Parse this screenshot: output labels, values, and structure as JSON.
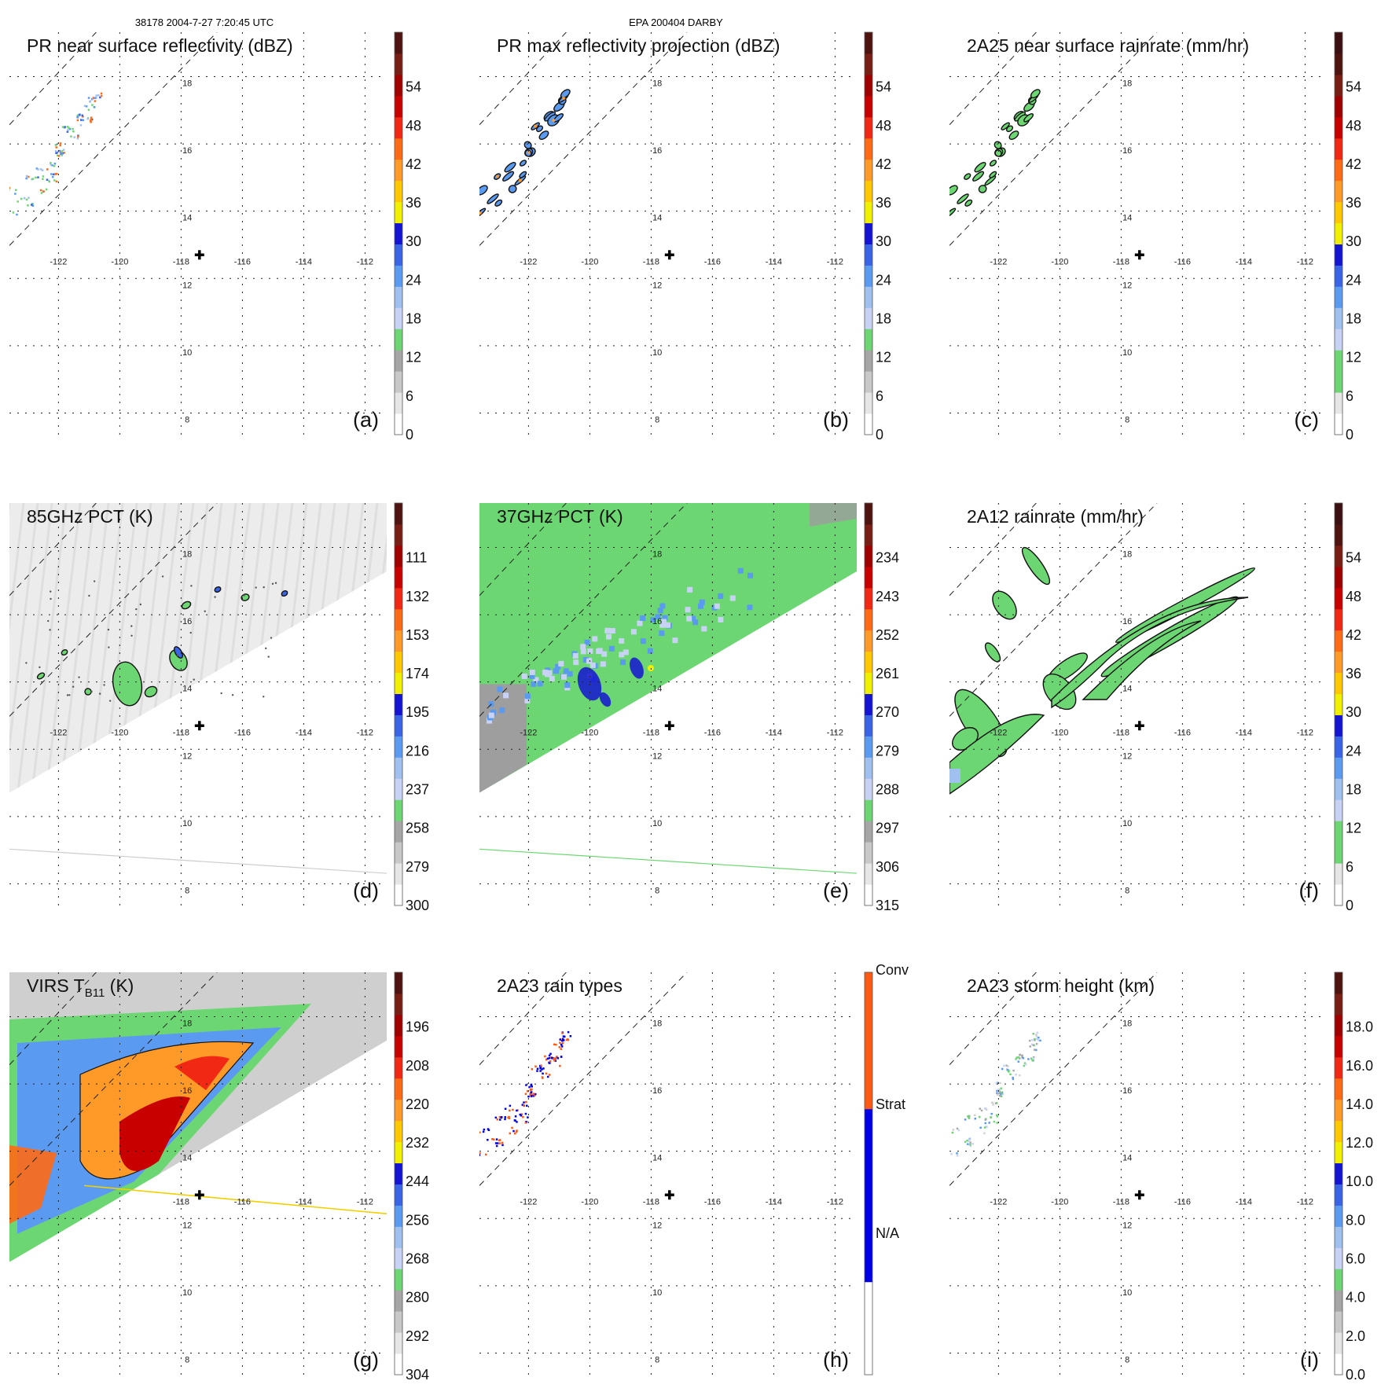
{
  "header": {
    "left": "38178 2004-7-27 7:20:45 UTC",
    "center": "EPA 200404 DARBY"
  },
  "colors": {
    "reflectivity_scale": [
      "#ffffff",
      "#e6e6e6",
      "#c8c8c8",
      "#a6a6a6",
      "#6cd672",
      "#c8d2f4",
      "#a0c0f0",
      "#5a9af0",
      "#3a64e6",
      "#1414d2",
      "#f0f000",
      "#ffc800",
      "#ff9a28",
      "#ff6a14",
      "#f02814",
      "#c80000",
      "#a00000",
      "#781e14",
      "#501410"
    ],
    "rain_type_scale": [
      "#ffffff",
      "#0000e6",
      "#ff5a14"
    ],
    "storm_center_marker": "#000000"
  },
  "chart_data": [
    {
      "id": "a",
      "type": "heatmap",
      "title": "PR near surface reflectivity (dBZ)",
      "label": "(a)",
      "colorbar_ticks": [
        "0",
        "6",
        "12",
        "18",
        "24",
        "30",
        "36",
        "42",
        "48",
        "54"
      ],
      "lon_ticks": [
        "-122",
        "-120",
        "-118",
        "-116",
        "-114",
        "-112"
      ],
      "lat_ticks": [
        "18",
        "16",
        "14",
        "12",
        "10",
        "8"
      ],
      "storm_center": [
        -117.4,
        13.1
      ]
    },
    {
      "id": "b",
      "type": "heatmap",
      "title": "PR max reflectivity projection (dBZ)",
      "label": "(b)",
      "colorbar_ticks": [
        "0",
        "6",
        "12",
        "18",
        "24",
        "30",
        "36",
        "42",
        "48",
        "54"
      ],
      "lon_ticks": [
        "-122",
        "-120",
        "-118",
        "-116",
        "-114",
        "-112"
      ],
      "lat_ticks": [
        "18",
        "16",
        "14",
        "12",
        "10",
        "8"
      ],
      "storm_center": [
        -117.4,
        13.1
      ]
    },
    {
      "id": "c",
      "type": "heatmap",
      "title": "2A25 near surface rainrate (mm/hr)",
      "label": "(c)",
      "colorbar_ticks": [
        "0",
        "6",
        "12",
        "18",
        "24",
        "30",
        "36",
        "42",
        "48",
        "54"
      ],
      "lon_ticks": [
        "-122",
        "-120",
        "-118",
        "-116",
        "-114",
        "-112"
      ],
      "lat_ticks": [
        "18",
        "16",
        "14",
        "12",
        "10",
        "8"
      ],
      "storm_center": [
        -117.4,
        13.1
      ]
    },
    {
      "id": "d",
      "type": "heatmap",
      "title": "85GHz PCT (K)",
      "label": "(d)",
      "colorbar_ticks": [
        "300",
        "279",
        "258",
        "237",
        "216",
        "195",
        "174",
        "153",
        "132",
        "111"
      ],
      "lon_ticks": [
        "-122",
        "-120",
        "-118",
        "-116",
        "-114",
        "-112"
      ],
      "lat_ticks": [
        "18",
        "16",
        "14",
        "12",
        "10",
        "8"
      ],
      "storm_center": [
        -117.4,
        13.1
      ]
    },
    {
      "id": "e",
      "type": "heatmap",
      "title": "37GHz PCT (K)",
      "label": "(e)",
      "colorbar_ticks": [
        "315",
        "306",
        "297",
        "288",
        "279",
        "270",
        "261",
        "252",
        "243",
        "234"
      ],
      "lon_ticks": [
        "-122",
        "-120",
        "-118",
        "-116",
        "-114",
        "-112"
      ],
      "lat_ticks": [
        "18",
        "16",
        "14",
        "12",
        "10",
        "8"
      ],
      "storm_center": [
        -117.4,
        13.1
      ]
    },
    {
      "id": "f",
      "type": "heatmap",
      "title": "2A12 rainrate (mm/hr)",
      "label": "(f)",
      "colorbar_ticks": [
        "0",
        "6",
        "12",
        "18",
        "24",
        "30",
        "36",
        "42",
        "48",
        "54"
      ],
      "lon_ticks": [
        "-122",
        "-120",
        "-118",
        "-116",
        "-114",
        "-112"
      ],
      "lat_ticks": [
        "18",
        "16",
        "14",
        "12",
        "10",
        "8"
      ],
      "storm_center": [
        -117.4,
        13.1
      ]
    },
    {
      "id": "g",
      "type": "heatmap",
      "title": "VIRS T",
      "title_sub": "B11",
      "title_unit": " (K)",
      "label": "(g)",
      "colorbar_ticks": [
        "304",
        "292",
        "280",
        "268",
        "256",
        "244",
        "232",
        "220",
        "208",
        "196"
      ],
      "lon_ticks": [
        "-118",
        "-116",
        "-114",
        "-112"
      ],
      "lat_ticks": [
        "18",
        "16",
        "14",
        "12",
        "10",
        "8"
      ],
      "storm_center": [
        -117.4,
        13.1
      ]
    },
    {
      "id": "h",
      "type": "heatmap",
      "title": "2A23 rain types",
      "label": "(h)",
      "colorbar_categories": [
        "N/A",
        "Strat",
        "Conv"
      ],
      "lon_ticks": [
        "-122",
        "-120",
        "-118",
        "-116",
        "-114",
        "-112"
      ],
      "lat_ticks": [
        "18",
        "16",
        "14",
        "12",
        "10",
        "8"
      ],
      "storm_center": [
        -117.4,
        13.1
      ]
    },
    {
      "id": "i",
      "type": "heatmap",
      "title": "2A23 storm height (km)",
      "label": "(i)",
      "colorbar_ticks": [
        "0.0",
        "2.0",
        "4.0",
        "6.0",
        "8.0",
        "10.0",
        "12.0",
        "14.0",
        "16.0",
        "18.0"
      ],
      "lon_ticks": [
        "-122",
        "-120",
        "-118",
        "-116",
        "-114",
        "-112"
      ],
      "lat_ticks": [
        "18",
        "16",
        "14",
        "12",
        "10",
        "8"
      ],
      "storm_center": [
        -117.4,
        13.1
      ]
    }
  ]
}
